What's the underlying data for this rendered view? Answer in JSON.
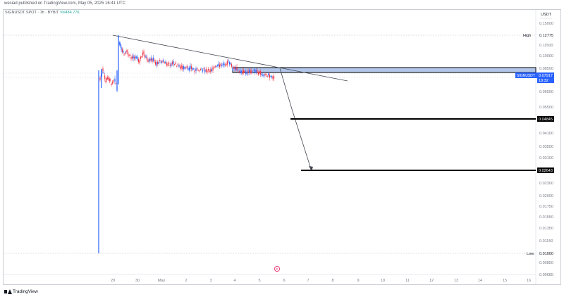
{
  "header": {
    "publish_caption": "wesiad published on TradingView.com, May 05, 2025 16:41 UTC",
    "symbol_line": "SIGNUSDT SPOT · 1h · BYBIT",
    "volume_text": "Vol484.77K"
  },
  "price_scale": {
    "currency": "USDT",
    "ticks": [
      "0.15000",
      "0.12775",
      "0.11500",
      "0.10000",
      "0.08500",
      "0.07917",
      "0.06500",
      "0.05500",
      "0.04845",
      "0.04100",
      "0.03500",
      "0.03100",
      "0.02643",
      "0.02300",
      "0.02000",
      "0.01750",
      "0.01550",
      "0.01350",
      "0.01150",
      "0.01000",
      "0.00850",
      "0.00685"
    ],
    "high_label": "High",
    "high_value": "0.12775",
    "low_label": "Low",
    "low_value": "0.01000"
  },
  "tags": {
    "current_symbol": "SIGNUSDT",
    "current_price": "0.07917",
    "countdown": "18:32",
    "level_1": "0.04845",
    "level_2": "0.02643"
  },
  "time_scale": {
    "labels": [
      "29",
      "30",
      "May",
      "2",
      "3",
      "4",
      "5",
      "6",
      "7",
      "8",
      "9",
      "10",
      "11",
      "12",
      "13",
      "14",
      "15",
      "16"
    ]
  },
  "marker": {
    "text": "E"
  },
  "footer": {
    "brand": "TradingView"
  },
  "colors": {
    "up": "#2962ff",
    "down": "#f23645",
    "zone_fill": "#b2c6ea",
    "level_line": "#000000",
    "trendline": "#434651",
    "marker": "#e91e63"
  }
}
